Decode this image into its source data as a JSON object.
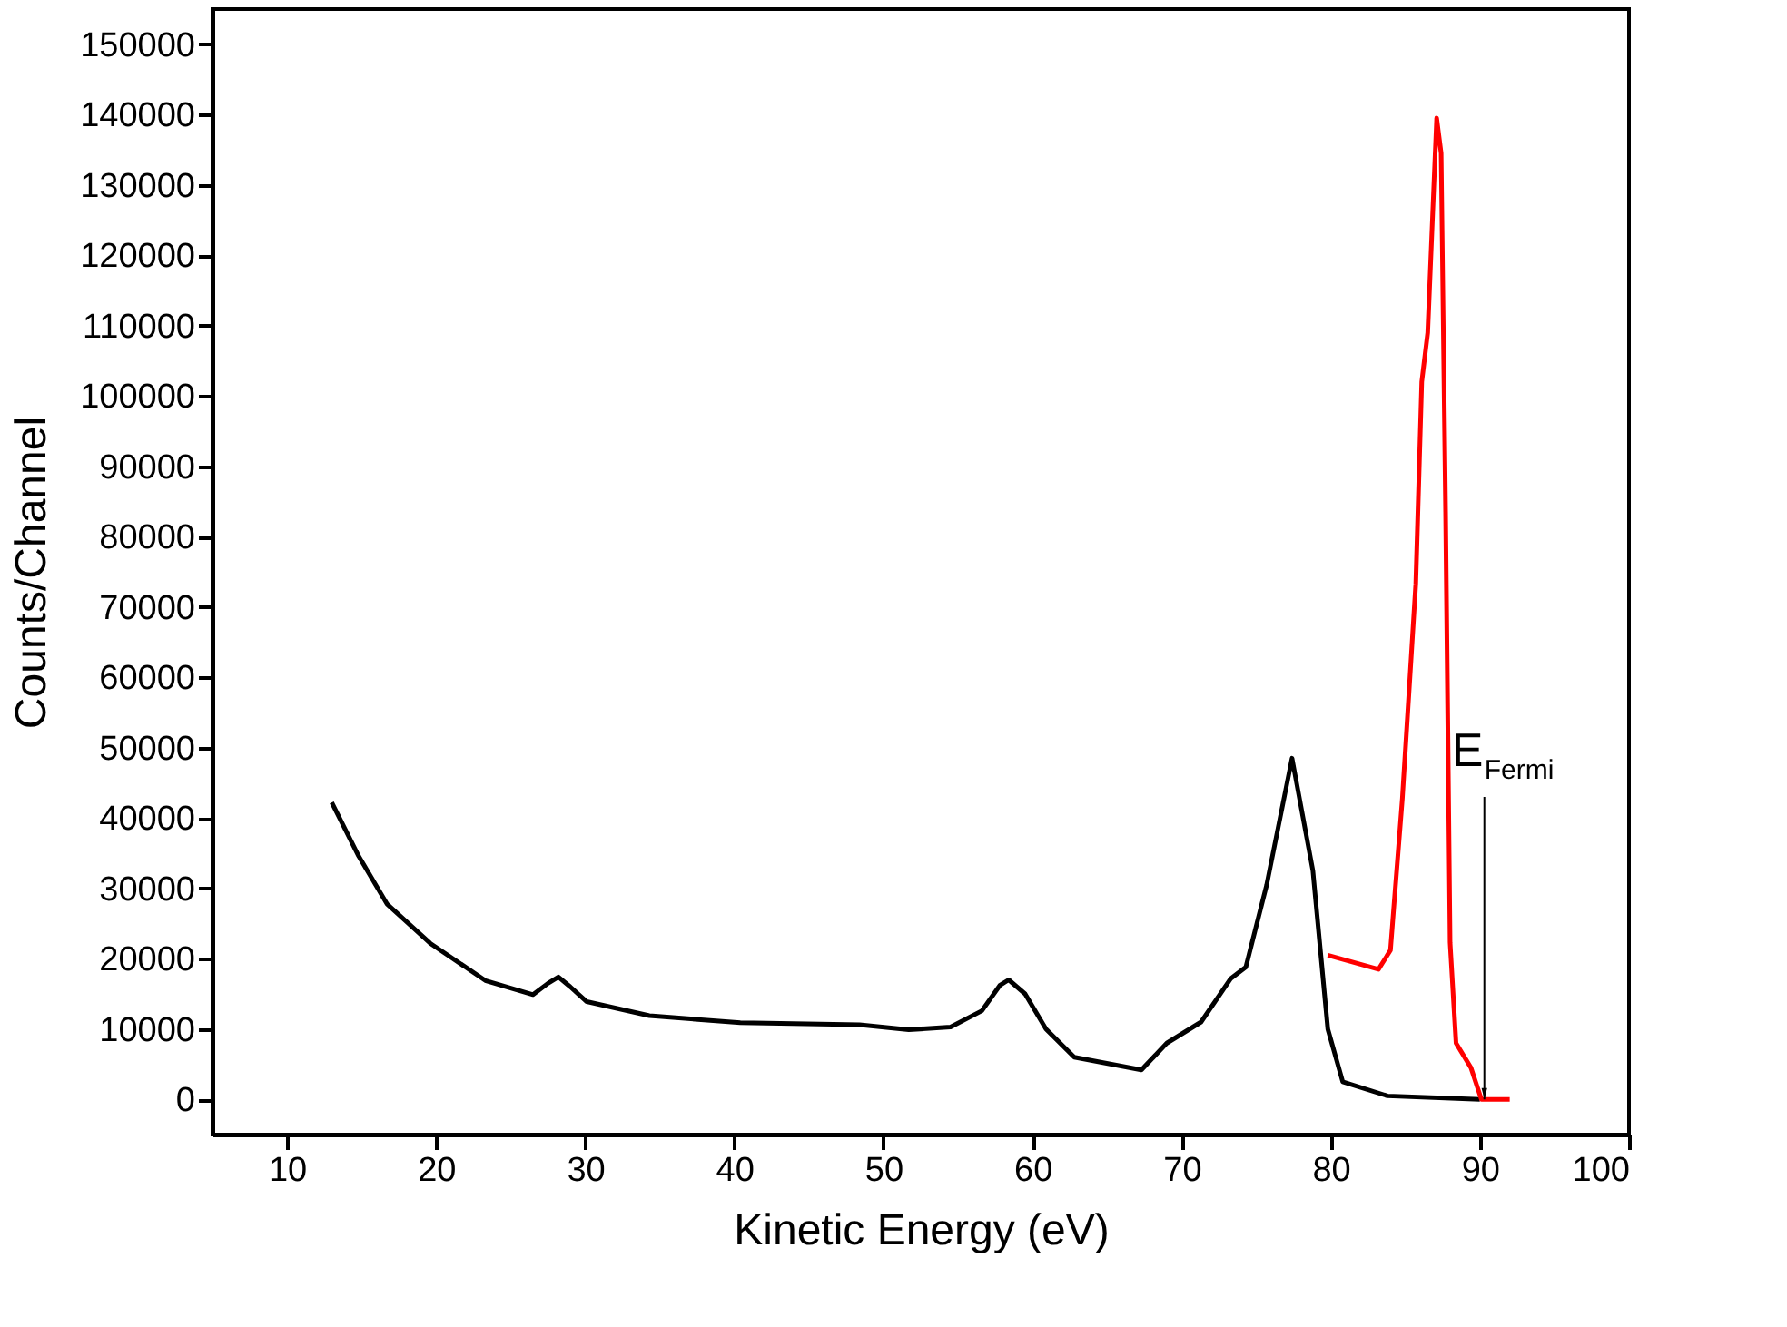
{
  "chart_data": {
    "type": "line",
    "xlabel": "Kinetic Energy (eV)",
    "ylabel": "Counts/Channel",
    "xlim": [
      5,
      100
    ],
    "xticks": [
      10,
      20,
      30,
      40,
      50,
      60,
      70,
      80,
      90,
      100
    ],
    "ylim": [
      -5000,
      155000
    ],
    "yticks": [
      0,
      10000,
      20000,
      30000,
      40000,
      50000,
      60000,
      70000,
      80000,
      90000,
      100000,
      110000,
      120000,
      130000,
      140000,
      150000
    ],
    "grid": false,
    "marker": "none",
    "line_style": "solid",
    "series": [
      {
        "color": "#000000",
        "x": [
          13.0,
          14.8,
          16.7,
          19.6,
          23.3,
          26.5,
          27.5,
          28.2,
          29.0,
          30.1,
          34.3,
          40.4,
          48.4,
          51.7,
          54.5,
          56.6,
          57.8,
          58.4,
          59.5,
          60.9,
          62.8,
          67.3,
          69.0,
          71.3,
          73.3,
          74.3,
          75.7,
          77.4,
          78.8,
          79.8,
          80.8,
          83.8,
          90.0
        ],
        "values": [
          42200,
          34600,
          27800,
          22200,
          16900,
          14900,
          16500,
          17400,
          16000,
          13900,
          11900,
          10900,
          10600,
          9900,
          10300,
          12600,
          16200,
          17000,
          15000,
          10000,
          6000,
          4200,
          8000,
          11000,
          17200,
          18800,
          30500,
          48500,
          32500,
          10000,
          2500,
          500,
          0
        ]
      },
      {
        "color": "#ff0000",
        "x": [
          79.8,
          83.2,
          84.0,
          84.8,
          85.7,
          86.1,
          86.5,
          87.1,
          87.4,
          87.7,
          88.0,
          88.4,
          89.4,
          90.1,
          92.0
        ],
        "values": [
          20500,
          18500,
          21200,
          42800,
          73300,
          102000,
          109000,
          139500,
          134500,
          83500,
          22300,
          8000,
          4500,
          0,
          0
        ]
      }
    ],
    "annotations": [
      {
        "text": "E$_{Fermi}$",
        "x": 90.3,
        "y": 0
      }
    ]
  }
}
